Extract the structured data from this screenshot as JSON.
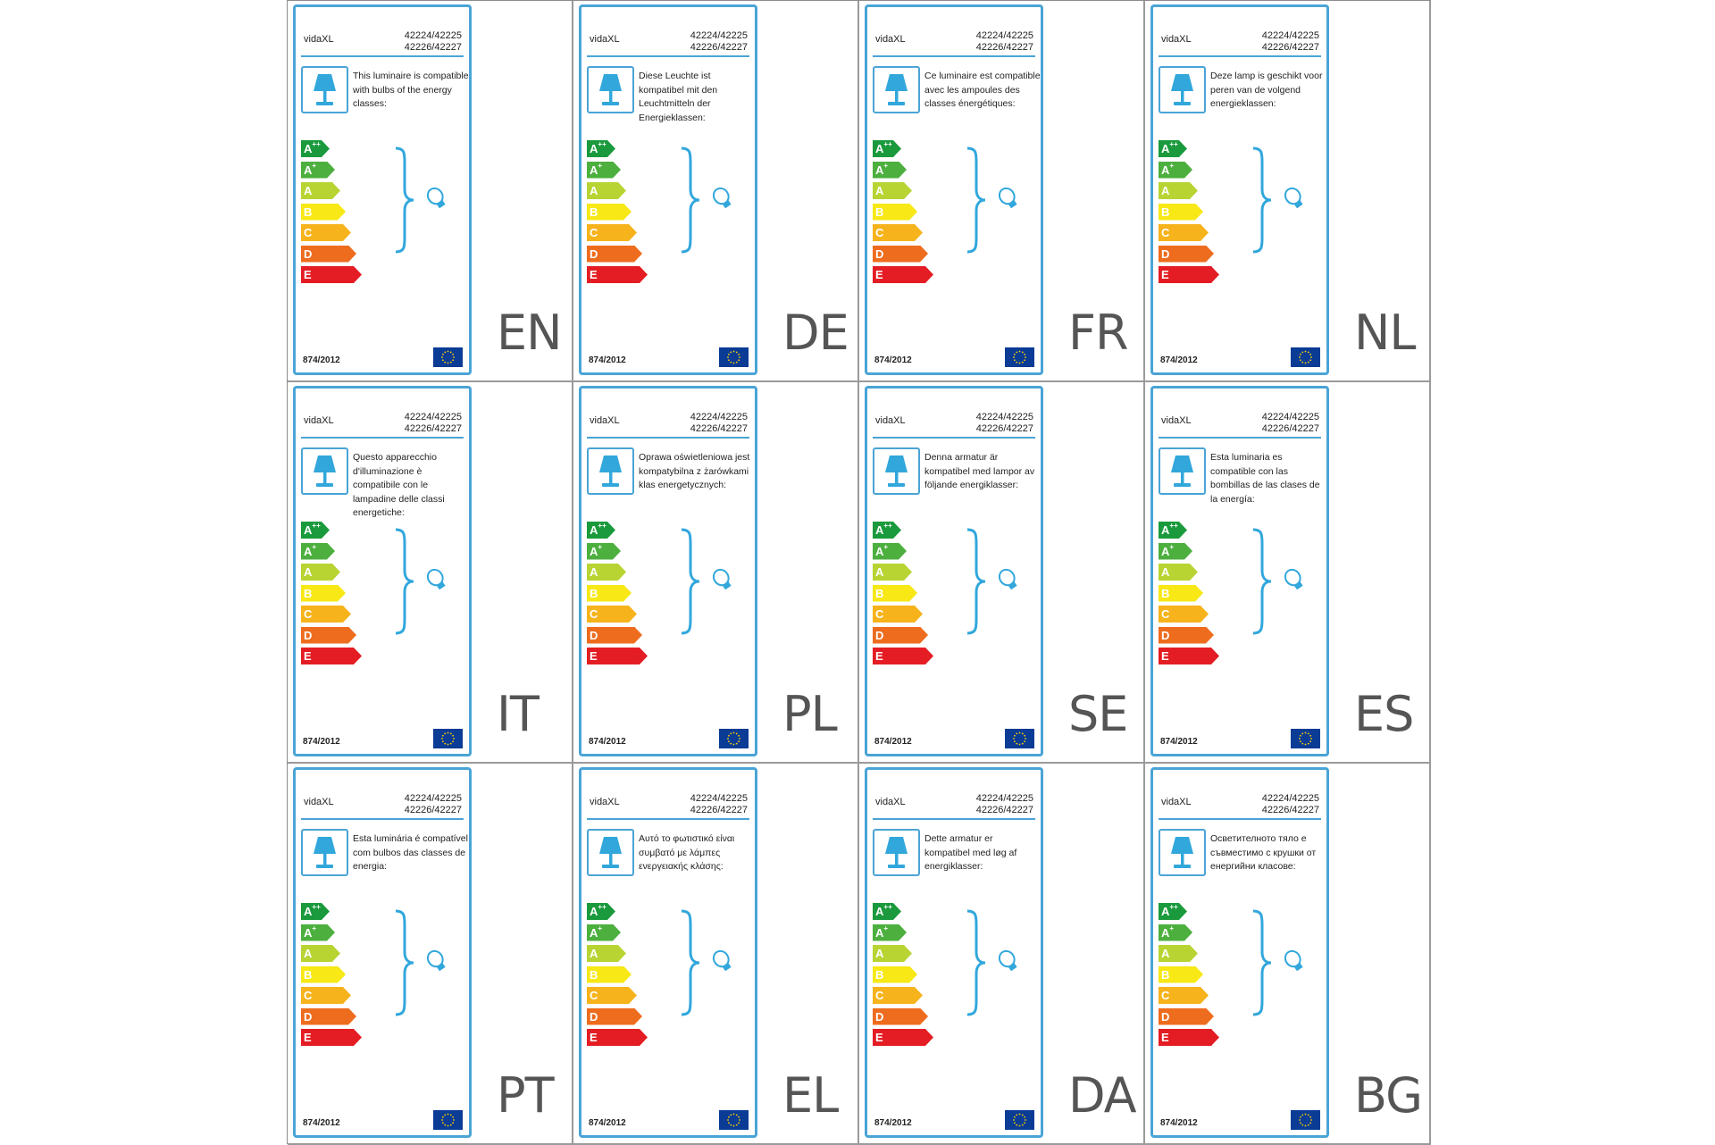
{
  "brand": "vidaXL",
  "model_line_1": "42224/42225",
  "model_line_2": "42226/42227",
  "regulation": "874/2012",
  "icons": [
    "table-lamp-icon",
    "curly-brace-icon",
    "light-bulb-icon",
    "eu-flag-icon"
  ],
  "colors": {
    "frame": "#4aa4d6",
    "lamp": "#31a7dc",
    "eu_flag": "#0a3b95",
    "class_app": "#1a9a3c",
    "class_ap": "#4caf3e",
    "class_a": "#b8d433",
    "class_b": "#f7e816",
    "class_c": "#f6b31b",
    "class_d": "#ee6c1e",
    "class_e": "#e31d23"
  },
  "energy_classes": [
    {
      "letter": "A",
      "sup": "++"
    },
    {
      "letter": "A",
      "sup": "+"
    },
    {
      "letter": "A",
      "sup": ""
    },
    {
      "letter": "B",
      "sup": ""
    },
    {
      "letter": "C",
      "sup": ""
    },
    {
      "letter": "D",
      "sup": ""
    },
    {
      "letter": "E",
      "sup": ""
    }
  ],
  "labels": [
    {
      "lang": "EN",
      "text": "This luminaire is compatible with bulbs of the energy classes:"
    },
    {
      "lang": "DE",
      "text": "Diese Leuchte ist kompatibel mit den Leuchtmitteln der Energieklassen:"
    },
    {
      "lang": "FR",
      "text": "Ce luminaire est compatible avec les ampoules des classes énergétiques:"
    },
    {
      "lang": "NL",
      "text": "Deze lamp is geschikt voor peren van de volgend energieklassen:"
    },
    {
      "lang": "IT",
      "text": "Questo apparecchio d'illuminazione è compatibile con le lampadine delle classi energetiche:"
    },
    {
      "lang": "PL",
      "text": "Oprawa oświetleniowa jest kompatybilna z żarówkami klas energetycznych:"
    },
    {
      "lang": "SE",
      "text": "Denna armatur är kompatibel med lampor av följande energiklasser:"
    },
    {
      "lang": "ES",
      "text": "Esta luminaria es compatible con las bombillas de las clases de la energía:"
    },
    {
      "lang": "PT",
      "text": "Esta luminária é compatível com bulbos das classes de energia:"
    },
    {
      "lang": "EL",
      "text": "Αυτό το φωτιστικό είναι συμβατό με λάμπες ενεργειακής κλάσης:"
    },
    {
      "lang": "DA",
      "text": "Dette armatur er kompatibel med løg af energiklasser:"
    },
    {
      "lang": "BG",
      "text": "Осветителното тяло е съвместимо с крушки от енергийни класове:"
    }
  ]
}
